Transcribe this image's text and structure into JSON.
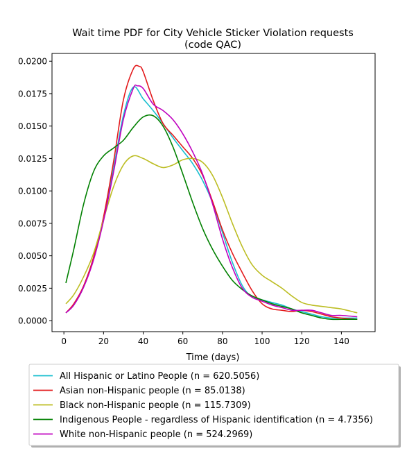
{
  "chart_data": {
    "type": "line",
    "title": "Wait time PDF for City Vehicle Sticker Violation  requests",
    "subtitle": "(code QAC)",
    "xlabel": "Time (days)",
    "ylabel": "",
    "xlim": [
      -6,
      157
    ],
    "ylim": [
      -0.00085,
      0.0206
    ],
    "x_ticks": [
      0,
      20,
      40,
      60,
      80,
      100,
      120,
      140
    ],
    "x_tick_labels": [
      "0",
      "20",
      "40",
      "60",
      "80",
      "100",
      "120",
      "140"
    ],
    "y_ticks": [
      0,
      0.0025,
      0.005,
      0.0075,
      0.01,
      0.0125,
      0.015,
      0.0175,
      0.02
    ],
    "y_tick_labels": [
      "0.0000",
      "0.0025",
      "0.0050",
      "0.0075",
      "0.0100",
      "0.0125",
      "0.0150",
      "0.0175",
      "0.0200"
    ],
    "grid": false,
    "legend_position": "below",
    "series": [
      {
        "name": "All Hispanic or Latino People (n = 620.5056)",
        "color": "#17becf",
        "x": [
          1,
          5,
          10,
          15,
          20,
          25,
          30,
          35,
          40,
          45,
          50,
          55,
          60,
          65,
          70,
          75,
          80,
          85,
          90,
          95,
          100,
          105,
          110,
          115,
          120,
          125,
          130,
          135,
          140,
          148
        ],
        "y": [
          0.0006,
          0.0012,
          0.0026,
          0.0048,
          0.0078,
          0.0117,
          0.0158,
          0.018,
          0.0171,
          0.0162,
          0.0152,
          0.0141,
          0.0131,
          0.0121,
          0.0108,
          0.0091,
          0.0068,
          0.0045,
          0.0027,
          0.0018,
          0.0016,
          0.0014,
          0.0012,
          0.0009,
          0.0007,
          0.0005,
          0.0003,
          0.0002,
          0.0002,
          0.0002
        ]
      },
      {
        "name": "Asian non-Hispanic people (n = 85.0138)",
        "color": "#e31a1c",
        "x": [
          1,
          5,
          10,
          15,
          20,
          25,
          30,
          35,
          38,
          40,
          45,
          50,
          55,
          60,
          65,
          70,
          75,
          80,
          85,
          90,
          95,
          100,
          105,
          110,
          115,
          120,
          125,
          130,
          135,
          140,
          148
        ],
        "y": [
          0.0006,
          0.0013,
          0.0027,
          0.0049,
          0.008,
          0.0122,
          0.017,
          0.0194,
          0.0196,
          0.0192,
          0.017,
          0.0152,
          0.0143,
          0.0134,
          0.0125,
          0.0112,
          0.0092,
          0.007,
          0.0052,
          0.0037,
          0.0023,
          0.0013,
          0.0009,
          0.0008,
          0.0007,
          0.0008,
          0.0007,
          0.0005,
          0.0003,
          0.0002,
          0.0001
        ]
      },
      {
        "name": "Black non-Hispanic people (n = 115.7309)",
        "color": "#bcbd22",
        "x": [
          1,
          5,
          10,
          15,
          20,
          25,
          30,
          35,
          40,
          45,
          50,
          55,
          60,
          65,
          70,
          75,
          80,
          85,
          90,
          95,
          100,
          105,
          110,
          115,
          120,
          125,
          130,
          135,
          140,
          148
        ],
        "y": [
          0.0013,
          0.002,
          0.0034,
          0.0052,
          0.0078,
          0.0103,
          0.012,
          0.0127,
          0.0125,
          0.0121,
          0.0118,
          0.012,
          0.0124,
          0.0125,
          0.0122,
          0.0112,
          0.0095,
          0.0075,
          0.0057,
          0.0043,
          0.0035,
          0.003,
          0.0025,
          0.0019,
          0.0014,
          0.0012,
          0.0011,
          0.001,
          0.0009,
          0.0006
        ]
      },
      {
        "name": "Indigenous People - regardless of Hispanic identification (n = 4.7356)",
        "color": "#008000",
        "x": [
          1,
          5,
          10,
          15,
          20,
          25,
          30,
          35,
          40,
          45,
          50,
          55,
          60,
          65,
          70,
          75,
          80,
          85,
          90,
          95,
          100,
          105,
          110,
          115,
          120,
          125,
          130,
          135,
          140,
          148
        ],
        "y": [
          0.0029,
          0.0055,
          0.009,
          0.0115,
          0.0127,
          0.0133,
          0.0139,
          0.0149,
          0.0157,
          0.0158,
          0.015,
          0.0134,
          0.0113,
          0.0091,
          0.0071,
          0.0055,
          0.0042,
          0.0031,
          0.0024,
          0.0019,
          0.0016,
          0.0013,
          0.0011,
          0.0009,
          0.0006,
          0.0004,
          0.0002,
          0.0001,
          0.0001,
          0.0001
        ]
      },
      {
        "name": "White non-Hispanic people (n = 524.2969)",
        "color": "#bf00bf",
        "x": [
          1,
          5,
          10,
          15,
          20,
          25,
          30,
          35,
          37,
          40,
          45,
          50,
          55,
          60,
          65,
          70,
          75,
          80,
          85,
          90,
          95,
          100,
          105,
          110,
          115,
          120,
          125,
          130,
          135,
          140,
          148
        ],
        "y": [
          0.0006,
          0.0012,
          0.0026,
          0.0047,
          0.0077,
          0.0114,
          0.0155,
          0.0179,
          0.0181,
          0.0179,
          0.0167,
          0.0162,
          0.0155,
          0.0144,
          0.013,
          0.0113,
          0.009,
          0.0063,
          0.0041,
          0.0025,
          0.0018,
          0.0015,
          0.0012,
          0.001,
          0.0008,
          0.0008,
          0.0008,
          0.0006,
          0.0004,
          0.0004,
          0.0003
        ]
      }
    ]
  }
}
